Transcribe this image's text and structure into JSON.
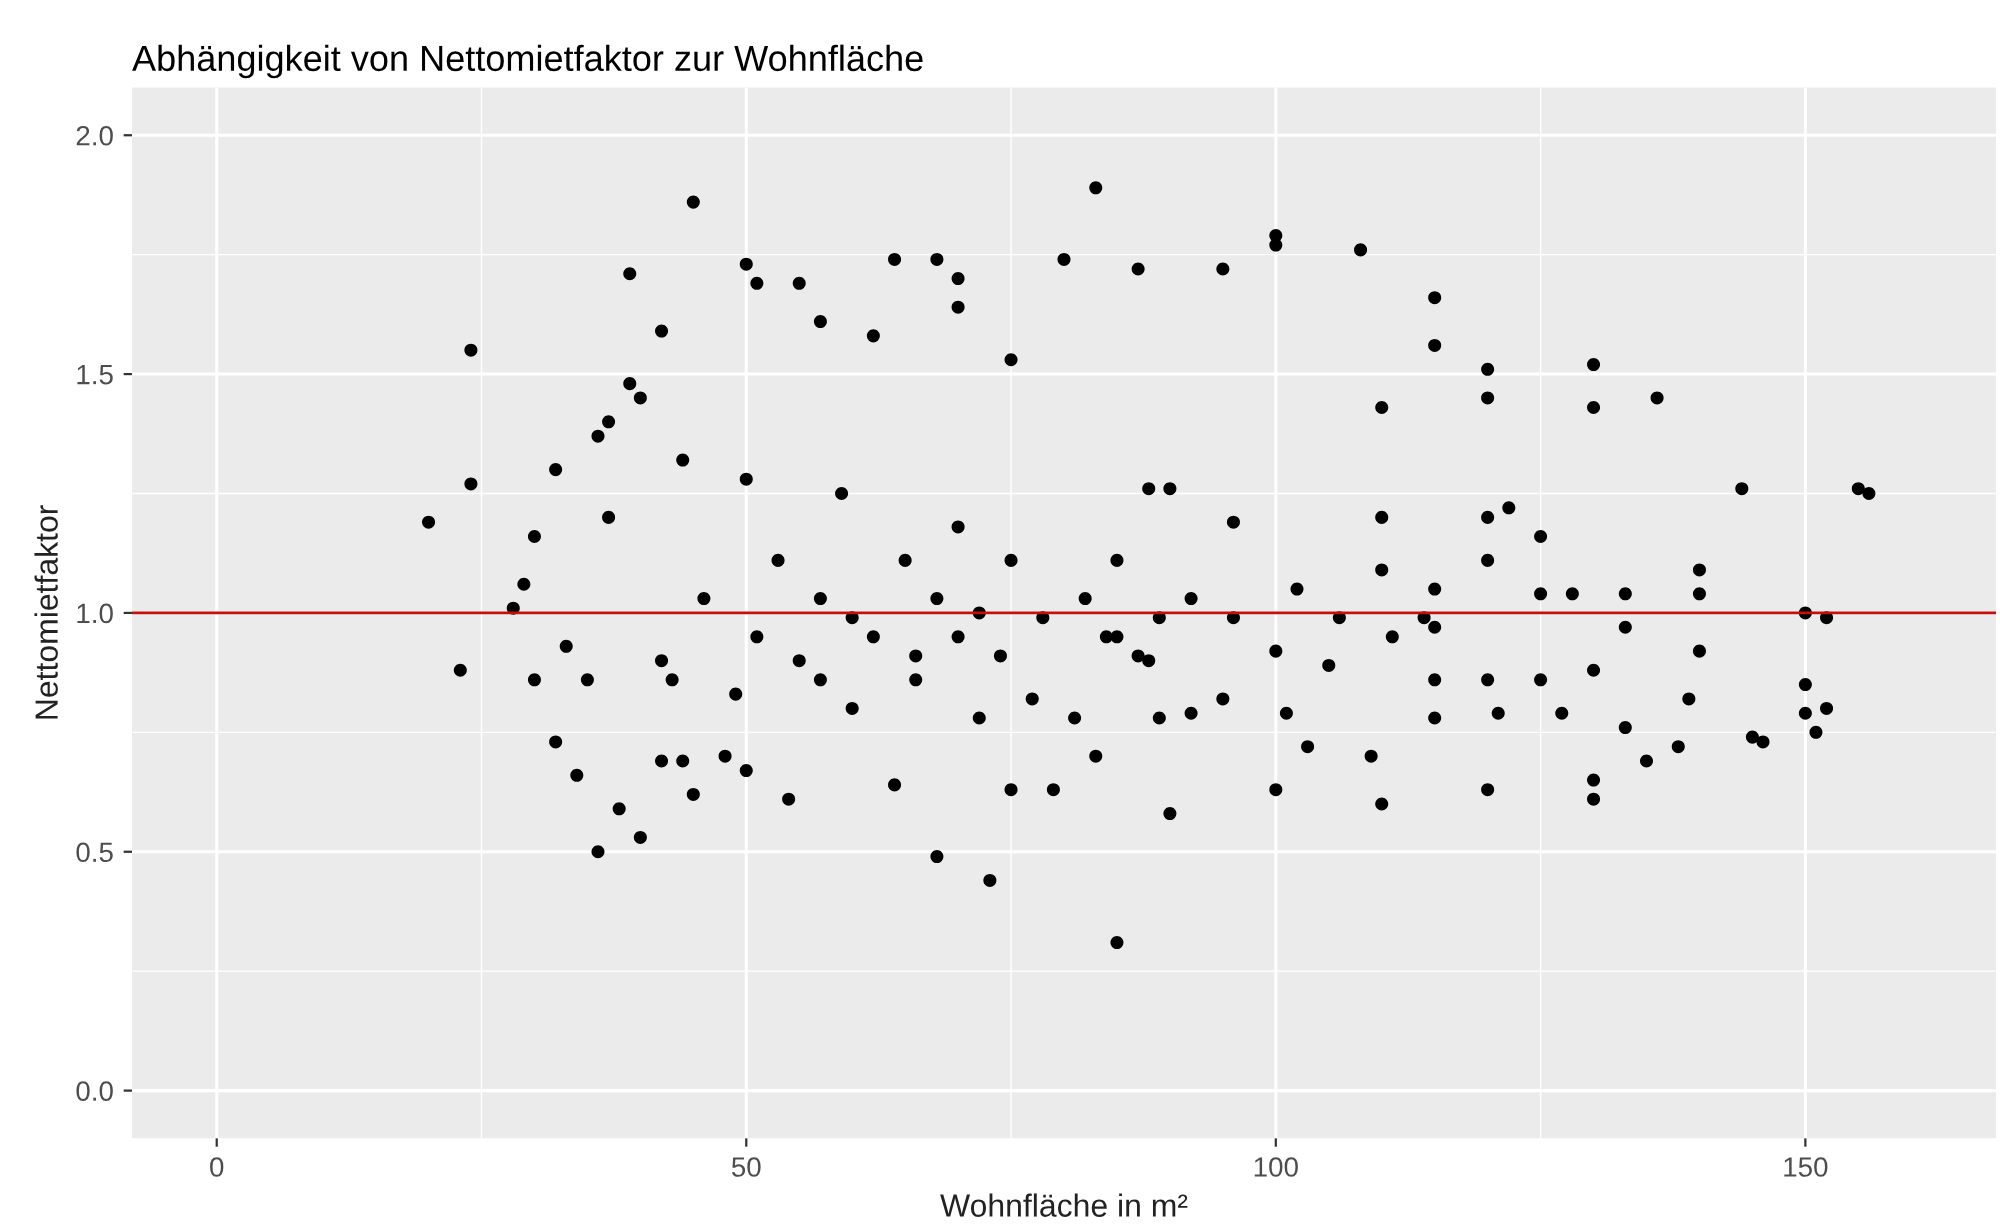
{
  "chart_data": {
    "type": "scatter",
    "title": "Abhängigkeit von Nettomietfaktor zur Wohnfläche",
    "xlabel": "Wohnfläche in m²",
    "ylabel": "Nettomietfaktor",
    "xlim": [
      -8,
      168
    ],
    "ylim": [
      -0.1,
      2.1
    ],
    "xticks": [
      0,
      50,
      100,
      150
    ],
    "yticks": [
      {
        "value": 0,
        "label": "0.0"
      },
      {
        "value": 0.5,
        "label": "0.5"
      },
      {
        "value": 1,
        "label": "1.0"
      },
      {
        "value": 1.5,
        "label": "1.5"
      },
      {
        "value": 2,
        "label": "2.0"
      }
    ],
    "grid": true,
    "marker": "circle",
    "ref_lines": [
      {
        "axis": "y",
        "value": 1,
        "color": "#c01010",
        "line_style": "solid"
      }
    ],
    "series": [
      {
        "color": "#000000",
        "x": [
          20,
          23,
          24,
          24,
          28,
          29,
          30,
          30,
          32,
          32,
          33,
          34,
          35,
          36,
          36,
          37,
          37,
          38,
          39,
          39,
          40,
          40,
          42,
          42,
          44,
          45,
          44,
          50,
          50,
          50,
          51,
          55,
          57,
          62,
          64,
          68,
          68,
          70,
          70,
          73,
          75,
          80,
          83,
          83,
          85,
          87,
          95,
          100,
          100,
          108,
          115,
          115,
          120,
          120,
          130,
          130,
          136,
          144,
          155,
          156,
          150,
          152,
          150,
          150,
          152,
          151,
          145,
          146,
          140,
          140,
          140,
          139,
          138,
          135,
          133,
          130,
          130,
          130,
          133,
          133,
          128,
          127,
          125,
          125,
          125,
          122,
          121,
          120,
          120,
          120,
          120,
          115,
          115,
          115,
          114,
          110,
          110,
          110,
          110,
          109,
          105,
          103,
          101,
          100,
          100,
          96,
          95,
          92,
          90,
          90,
          89,
          88,
          88,
          85,
          84,
          82,
          81,
          79,
          77,
          75,
          75,
          72,
          72,
          70,
          68,
          66,
          65,
          64,
          62,
          60,
          59,
          57,
          55,
          54,
          53,
          51,
          49,
          48,
          46,
          45,
          43,
          42,
          96,
          92,
          89,
          87,
          85,
          78,
          74,
          70,
          66,
          60,
          57,
          102,
          106,
          111,
          115
        ],
        "values": [
          1.19,
          0.88,
          1.55,
          1.27,
          1.01,
          1.06,
          1.16,
          0.86,
          1.3,
          0.73,
          0.93,
          0.66,
          0.86,
          0.5,
          1.37,
          1.2,
          1.4,
          0.59,
          1.71,
          1.48,
          0.53,
          1.45,
          1.59,
          0.9,
          1.32,
          1.86,
          0.69,
          1.73,
          1.28,
          0.67,
          1.69,
          1.69,
          1.61,
          1.58,
          1.74,
          1.74,
          0.49,
          1.7,
          1.64,
          0.44,
          1.53,
          1.74,
          1.89,
          0.7,
          0.31,
          1.72,
          1.72,
          1.79,
          1.77,
          1.76,
          1.66,
          1.56,
          1.51,
          1.45,
          1.52,
          1.43,
          1.45,
          1.26,
          1.26,
          1.25,
          1.0,
          0.99,
          0.85,
          0.79,
          0.8,
          0.75,
          0.74,
          0.73,
          0.92,
          1.09,
          1.04,
          0.82,
          0.72,
          0.69,
          0.76,
          0.65,
          0.61,
          0.88,
          1.04,
          0.97,
          1.04,
          0.79,
          1.04,
          0.86,
          1.16,
          1.22,
          0.79,
          1.2,
          1.11,
          0.63,
          0.86,
          0.78,
          0.86,
          0.97,
          0.99,
          1.09,
          0.6,
          1.2,
          1.43,
          0.7,
          0.89,
          0.72,
          0.79,
          0.63,
          0.92,
          1.19,
          0.82,
          0.79,
          0.58,
          1.26,
          0.78,
          1.26,
          0.9,
          1.11,
          0.95,
          1.03,
          0.78,
          0.63,
          0.82,
          1.11,
          0.63,
          1.0,
          0.78,
          1.18,
          1.03,
          0.86,
          1.11,
          0.64,
          0.95,
          0.8,
          1.25,
          1.03,
          0.9,
          0.61,
          1.11,
          0.95,
          0.83,
          0.7,
          1.03,
          0.62,
          0.86,
          0.69,
          0.99,
          1.03,
          0.99,
          0.91,
          0.95,
          0.99,
          0.91,
          0.95,
          0.91,
          0.99,
          0.86,
          1.05,
          0.99,
          0.95,
          1.05
        ]
      }
    ]
  }
}
